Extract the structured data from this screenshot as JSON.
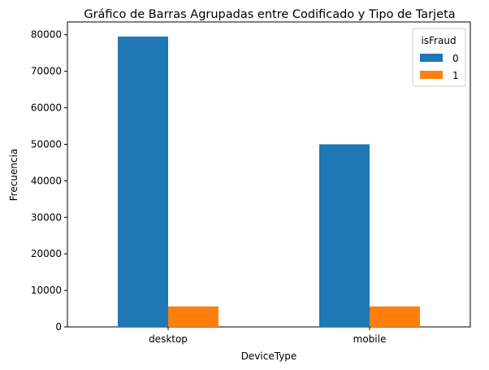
{
  "chart_data": {
    "type": "bar",
    "title": "Gráfico de Barras Agrupadas entre Codificado y Tipo de Tarjeta",
    "xlabel": "DeviceType",
    "ylabel": "Frecuencia",
    "categories": [
      "desktop",
      "mobile"
    ],
    "series": [
      {
        "name": "0",
        "color": "#1f77b4",
        "values": [
          79500,
          50000
        ]
      },
      {
        "name": "1",
        "color": "#ff7f0e",
        "values": [
          5600,
          5600
        ]
      }
    ],
    "ylim": [
      0,
      83500
    ],
    "yticks": [
      0,
      10000,
      20000,
      30000,
      40000,
      50000,
      60000,
      70000,
      80000
    ],
    "ytick_labels": [
      "0",
      "10000",
      "20000",
      "30000",
      "40000",
      "50000",
      "60000",
      "70000",
      "80000"
    ],
    "legend": {
      "title": "isFraud",
      "position": "top-right"
    },
    "grid": false
  }
}
